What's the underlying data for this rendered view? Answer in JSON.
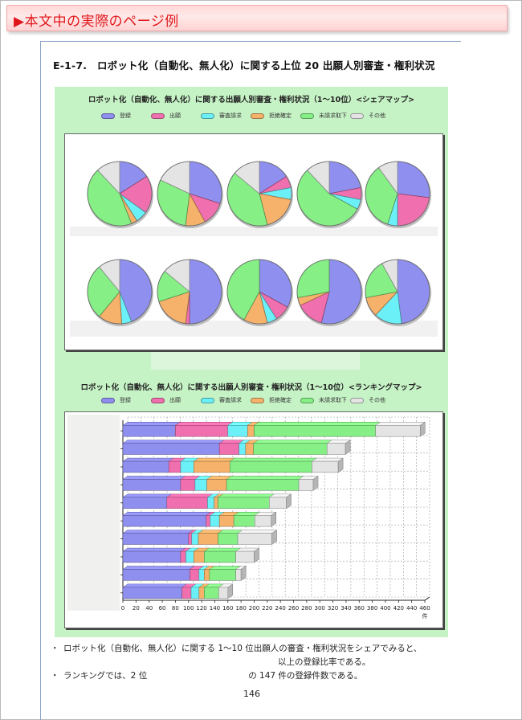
{
  "banner": {
    "text": "▶本文中の実際のページ例"
  },
  "heading": "E-1-7.　ロボット化（自動化、無人化）に関する上位 20 出願人別審査・権利状況",
  "legend": [
    {
      "label": "登録",
      "color": "#8f8fef"
    },
    {
      "label": "出願",
      "color": "#f06fae"
    },
    {
      "label": "審査請求",
      "color": "#6cf0f8"
    },
    {
      "label": "拒絶確定",
      "color": "#f6b26a"
    },
    {
      "label": "未請求取下",
      "color": "#86ef86"
    },
    {
      "label": "その他",
      "color": "#e4e4e4"
    }
  ],
  "chart_data": [
    {
      "type": "pie",
      "title": "ロボット化（自動化、無人化）に関する出願人別審査・権利状況（1～10位）<シェアマップ>",
      "series_names": [
        "登録",
        "出願",
        "審査請求",
        "拒絶確定",
        "未請求取下",
        "その他"
      ],
      "pies": [
        [
          16,
          19,
          6,
          3,
          44,
          12
        ],
        [
          30,
          12,
          0,
          10,
          30,
          18
        ],
        [
          16,
          6,
          6,
          18,
          40,
          14
        ],
        [
          22,
          6,
          5,
          0,
          55,
          12
        ],
        [
          27,
          23,
          5,
          0,
          35,
          10
        ],
        [
          44,
          0,
          5,
          12,
          28,
          11
        ],
        [
          50,
          2,
          0,
          18,
          16,
          14
        ],
        [
          33,
          8,
          5,
          12,
          42,
          0
        ],
        [
          54,
          14,
          0,
          4,
          28,
          0
        ],
        [
          48,
          0,
          14,
          10,
          20,
          8
        ]
      ]
    },
    {
      "type": "bar",
      "orientation": "horizontal",
      "stacked": true,
      "title": "ロボット化（自動化、無人化）に関する出願人別審査・権利状況（1～10位）<ランキングマップ>",
      "x_ticks": [
        0,
        20,
        40,
        60,
        80,
        100,
        120,
        140,
        160,
        180,
        200,
        220,
        240,
        260,
        280,
        300,
        320,
        340,
        360,
        380,
        400,
        420,
        440,
        460
      ],
      "xlabel": "件",
      "xlim": [
        0,
        460
      ],
      "series": [
        {
          "name": "登録",
          "values": [
            80,
            147,
            70,
            88,
            67,
            127,
            100,
            88,
            102,
            90
          ]
        },
        {
          "name": "出願",
          "values": [
            80,
            30,
            18,
            22,
            62,
            6,
            5,
            8,
            14,
            14
          ]
        },
        {
          "name": "審査請求",
          "values": [
            30,
            10,
            20,
            18,
            10,
            14,
            10,
            12,
            8,
            12
          ]
        },
        {
          "name": "拒絶確定",
          "values": [
            10,
            12,
            55,
            30,
            6,
            22,
            30,
            16,
            8,
            8
          ]
        },
        {
          "name": "未請求取下",
          "values": [
            185,
            112,
            125,
            110,
            78,
            32,
            30,
            48,
            40,
            22
          ]
        },
        {
          "name": "その他",
          "values": [
            68,
            28,
            40,
            22,
            26,
            25,
            52,
            28,
            8,
            14
          ]
        }
      ]
    }
  ],
  "bullets": [
    {
      "text": "ロボット化（自動化、無人化）に関する 1～10 位出願人の審査・権利状況をシェアでみると、",
      "cont": "以上の登録比率である。"
    },
    {
      "text": "ランキングでは、2 位　　　　　　　　　　　　の 147 件の登録件数である。"
    }
  ],
  "page_number": "146"
}
